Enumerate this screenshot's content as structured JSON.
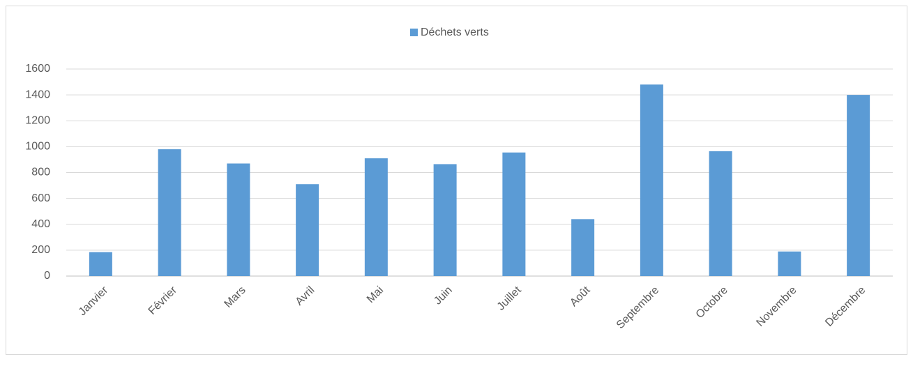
{
  "chart_data": {
    "type": "bar",
    "categories": [
      "Janvier",
      "Février",
      "Mars",
      "Avril",
      "Mai",
      "Juin",
      "Juillet",
      "Août",
      "Septembre",
      "Octobre",
      "Novembre",
      "Décembre"
    ],
    "series": [
      {
        "name": "Déchets verts",
        "color": "#5b9bd5",
        "values": [
          185,
          980,
          870,
          710,
          910,
          865,
          955,
          440,
          1480,
          965,
          190,
          1400
        ]
      }
    ],
    "ylim": [
      0,
      1600
    ],
    "yticks": [
      0,
      200,
      400,
      600,
      800,
      1000,
      1200,
      1400,
      1600
    ],
    "grid": true,
    "legend": "top"
  }
}
